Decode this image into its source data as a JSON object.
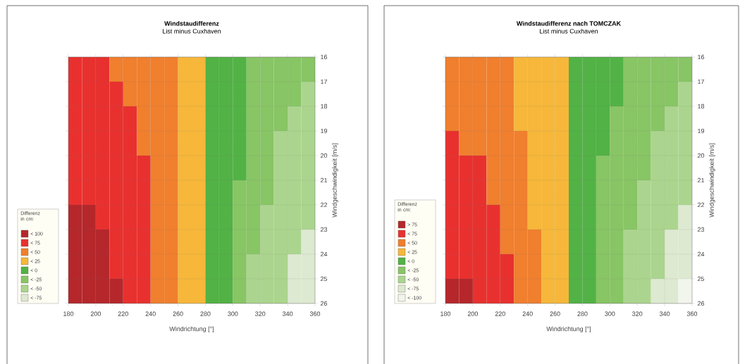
{
  "chart_data": [
    {
      "type": "heatmap",
      "title": "Windstaudifferenz",
      "subtitle": "List minus Cuxhaven",
      "xlabel": "Windrichtung [°]",
      "ylabel": "Windgeschwindigkeit [m/s]",
      "clabel": "Differenz in cm:",
      "x": [
        185,
        195,
        205,
        215,
        225,
        235,
        245,
        255,
        265,
        275,
        285,
        295,
        305,
        315,
        325,
        335,
        345,
        355
      ],
      "y": [
        16.5,
        17.5,
        18.5,
        19.5,
        20.5,
        21.5,
        22.5,
        23.5,
        24.5,
        25.5
      ],
      "cells": [
        [
          62.5,
          62.5,
          62.5,
          37.5,
          37.5,
          37.5,
          37.5,
          37.5,
          12.5,
          12.5,
          -12.5,
          -12.5,
          -12.5,
          -37.5,
          -37.5,
          -37.5,
          -37.5,
          -37.5
        ],
        [
          62.5,
          62.5,
          62.5,
          62.5,
          37.5,
          37.5,
          37.5,
          37.5,
          12.5,
          12.5,
          -12.5,
          -12.5,
          -12.5,
          -37.5,
          -37.5,
          -37.5,
          -37.5,
          -62.5
        ],
        [
          62.5,
          62.5,
          62.5,
          62.5,
          62.5,
          37.5,
          37.5,
          37.5,
          12.5,
          12.5,
          -12.5,
          -12.5,
          -12.5,
          -37.5,
          -37.5,
          -37.5,
          -62.5,
          -62.5
        ],
        [
          62.5,
          62.5,
          62.5,
          62.5,
          62.5,
          37.5,
          37.5,
          37.5,
          12.5,
          12.5,
          -12.5,
          -12.5,
          -12.5,
          -37.5,
          -37.5,
          -62.5,
          -62.5,
          -62.5
        ],
        [
          62.5,
          62.5,
          62.5,
          62.5,
          62.5,
          62.5,
          37.5,
          37.5,
          12.5,
          12.5,
          -12.5,
          -12.5,
          -12.5,
          -37.5,
          -37.5,
          -62.5,
          -62.5,
          -62.5
        ],
        [
          62.5,
          62.5,
          62.5,
          62.5,
          62.5,
          62.5,
          37.5,
          37.5,
          12.5,
          12.5,
          -12.5,
          -12.5,
          -37.5,
          -37.5,
          -37.5,
          -62.5,
          -62.5,
          -62.5
        ],
        [
          87.5,
          87.5,
          62.5,
          62.5,
          62.5,
          62.5,
          37.5,
          37.5,
          12.5,
          12.5,
          -12.5,
          -12.5,
          -37.5,
          -37.5,
          -62.5,
          -62.5,
          -62.5,
          -62.5
        ],
        [
          87.5,
          87.5,
          87.5,
          62.5,
          62.5,
          62.5,
          37.5,
          37.5,
          12.5,
          12.5,
          -12.5,
          -12.5,
          -37.5,
          -37.5,
          -62.5,
          -62.5,
          -62.5,
          -87.5
        ],
        [
          87.5,
          87.5,
          87.5,
          62.5,
          62.5,
          62.5,
          37.5,
          37.5,
          12.5,
          12.5,
          -12.5,
          -12.5,
          -37.5,
          -62.5,
          -62.5,
          -62.5,
          -87.5,
          -87.5
        ],
        [
          87.5,
          87.5,
          87.5,
          87.5,
          62.5,
          62.5,
          37.5,
          37.5,
          12.5,
          12.5,
          -12.5,
          -12.5,
          -37.5,
          -62.5,
          -62.5,
          -62.5,
          -87.5,
          -87.5
        ]
      ],
      "cticks": [
        {
          "value": 87.5,
          "label": "< 100"
        },
        {
          "value": 62.5,
          "label": "< 75"
        },
        {
          "value": 37.5,
          "label": "< 50"
        },
        {
          "value": 12.5,
          "label": "< 25"
        },
        {
          "value": -12.5,
          "label": "< 0"
        },
        {
          "value": -37.5,
          "label": "< -25"
        },
        {
          "value": -62.5,
          "label": "< -50"
        },
        {
          "value": -87.5,
          "label": "< -75"
        }
      ],
      "colors": [
        "#b5272b",
        "#e8312f",
        "#f07f2e",
        "#f6b73a",
        "#52b245",
        "#88c565",
        "#abd58e",
        "#dde9d0"
      ],
      "xlim": [
        180,
        360
      ],
      "xticks": [
        180,
        200,
        220,
        240,
        260,
        280,
        300,
        320,
        340,
        360
      ],
      "ylim": [
        26,
        16
      ],
      "yticks": [
        16,
        17,
        18,
        19,
        20,
        21,
        22,
        23,
        24,
        25,
        26
      ],
      "grid": true
    },
    {
      "type": "heatmap",
      "title": "Windstaudifferenz nach TOMCZAK",
      "subtitle": "List minus Cuxhaven",
      "xlabel": "Windrichtung [°]",
      "ylabel": "Windgeschwindigkeit [m/s]",
      "clabel": "Differenz in cm:",
      "x": [
        185,
        195,
        205,
        215,
        225,
        235,
        245,
        255,
        265,
        275,
        285,
        295,
        305,
        315,
        325,
        335,
        345,
        355
      ],
      "y": [
        16.5,
        17.5,
        18.5,
        19.5,
        20.5,
        21.5,
        22.5,
        23.5,
        24.5,
        25.5
      ],
      "cells": [
        [
          37.5,
          37.5,
          37.5,
          37.5,
          37.5,
          12.5,
          12.5,
          12.5,
          12.5,
          -12.5,
          -12.5,
          -12.5,
          -12.5,
          -37.5,
          -37.5,
          -37.5,
          -37.5,
          -37.5
        ],
        [
          37.5,
          37.5,
          37.5,
          37.5,
          37.5,
          12.5,
          12.5,
          12.5,
          12.5,
          -12.5,
          -12.5,
          -12.5,
          -12.5,
          -37.5,
          -37.5,
          -37.5,
          -37.5,
          -62.5
        ],
        [
          37.5,
          37.5,
          37.5,
          37.5,
          37.5,
          12.5,
          12.5,
          12.5,
          12.5,
          -12.5,
          -12.5,
          -12.5,
          -37.5,
          -37.5,
          -37.5,
          -37.5,
          -62.5,
          -62.5
        ],
        [
          62.5,
          37.5,
          37.5,
          37.5,
          37.5,
          37.5,
          12.5,
          12.5,
          12.5,
          -12.5,
          -12.5,
          -12.5,
          -37.5,
          -37.5,
          -37.5,
          -62.5,
          -62.5,
          -62.5
        ],
        [
          62.5,
          62.5,
          62.5,
          37.5,
          37.5,
          37.5,
          12.5,
          12.5,
          12.5,
          -12.5,
          -12.5,
          -37.5,
          -37.5,
          -37.5,
          -37.5,
          -62.5,
          -62.5,
          -62.5
        ],
        [
          62.5,
          62.5,
          62.5,
          37.5,
          37.5,
          37.5,
          12.5,
          12.5,
          12.5,
          -12.5,
          -12.5,
          -37.5,
          -37.5,
          -37.5,
          -62.5,
          -62.5,
          -62.5,
          -62.5
        ],
        [
          62.5,
          62.5,
          62.5,
          62.5,
          37.5,
          37.5,
          12.5,
          12.5,
          12.5,
          -12.5,
          -12.5,
          -37.5,
          -37.5,
          -37.5,
          -62.5,
          -62.5,
          -62.5,
          -87.5
        ],
        [
          62.5,
          62.5,
          62.5,
          62.5,
          37.5,
          37.5,
          37.5,
          12.5,
          12.5,
          -12.5,
          -12.5,
          -37.5,
          -37.5,
          -62.5,
          -62.5,
          -62.5,
          -87.5,
          -87.5
        ],
        [
          62.5,
          62.5,
          62.5,
          62.5,
          62.5,
          37.5,
          37.5,
          12.5,
          12.5,
          -12.5,
          -12.5,
          -37.5,
          -37.5,
          -62.5,
          -62.5,
          -62.5,
          -87.5,
          -87.5
        ],
        [
          87.5,
          87.5,
          62.5,
          62.5,
          62.5,
          37.5,
          37.5,
          12.5,
          12.5,
          -12.5,
          -12.5,
          -37.5,
          -37.5,
          -62.5,
          -62.5,
          -87.5,
          -87.5,
          -112.5
        ]
      ],
      "cticks": [
        {
          "value": 87.5,
          "label": "> 75"
        },
        {
          "value": 62.5,
          "label": "< 75"
        },
        {
          "value": 37.5,
          "label": "< 50"
        },
        {
          "value": 12.5,
          "label": "< 25"
        },
        {
          "value": -12.5,
          "label": "< 0"
        },
        {
          "value": -37.5,
          "label": "< -25"
        },
        {
          "value": -62.5,
          "label": "< -50"
        },
        {
          "value": -87.5,
          "label": "< -75"
        },
        {
          "value": -112.5,
          "label": "< -100"
        }
      ],
      "colors": [
        "#b5272b",
        "#e8312f",
        "#f07f2e",
        "#f6b73a",
        "#52b245",
        "#88c565",
        "#abd58e",
        "#dde9d0",
        "#f2f5ec"
      ],
      "xlim": [
        180,
        360
      ],
      "xticks": [
        180,
        200,
        220,
        240,
        260,
        280,
        300,
        320,
        340,
        360
      ],
      "ylim": [
        26,
        16
      ],
      "yticks": [
        16,
        17,
        18,
        19,
        20,
        21,
        22,
        23,
        24,
        25,
        26
      ],
      "grid": true
    }
  ]
}
